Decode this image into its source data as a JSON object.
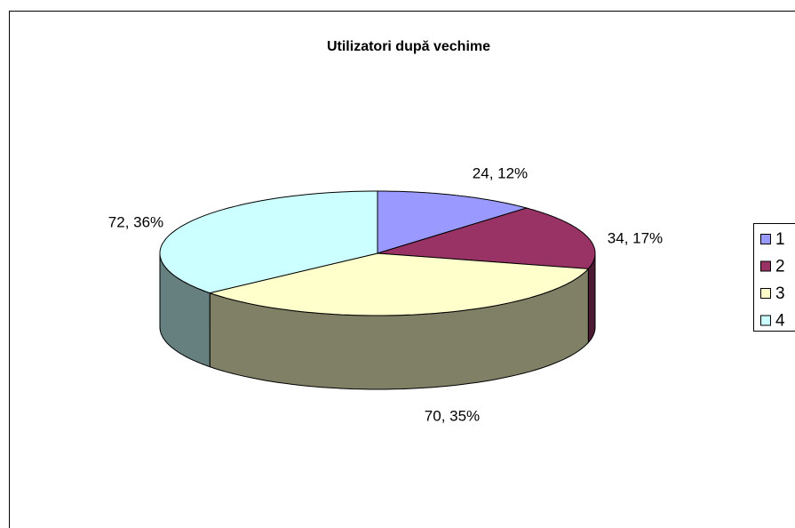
{
  "chart_data": {
    "type": "pie",
    "title": "Utilizatori după vechime",
    "categories": [
      "1",
      "2",
      "3",
      "4"
    ],
    "values": [
      24,
      34,
      70,
      72
    ],
    "value_labels": [
      "24, 12%",
      "34, 17%",
      "70, 35%",
      "72, 36%"
    ],
    "colors": [
      "#9999ff",
      "#993366",
      "#ffffcc",
      "#ccffff"
    ],
    "legend": "right"
  }
}
